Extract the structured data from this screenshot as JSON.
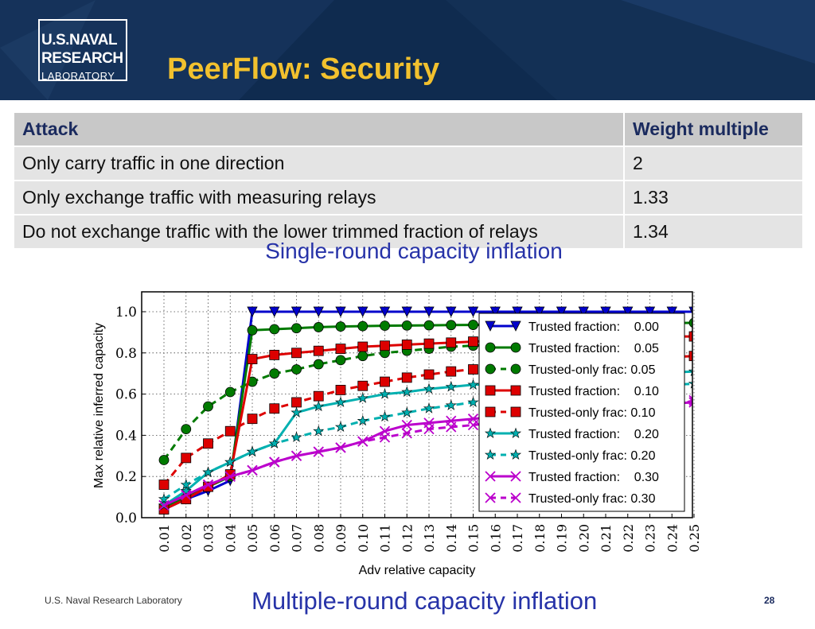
{
  "header": {
    "logo_line1": "U.S.NAVAL",
    "logo_line2": "RESEARCH",
    "logo_line3": "LABORATORY",
    "title": "PeerFlow: Security"
  },
  "table": {
    "headers": [
      "Attack",
      "Weight multiple"
    ],
    "rows": [
      [
        "Only carry traffic in one direction",
        "2"
      ],
      [
        "Only exchange traffic with measuring relays",
        "1.33"
      ],
      [
        "Do not exchange traffic with the lower trimmed fraction of relays",
        "1.34"
      ]
    ]
  },
  "caption_top": "Single-round capacity inflation",
  "caption_bottom": "Multiple-round capacity inflation",
  "footer": {
    "org": "U.S. Naval Research Laboratory",
    "page": "28"
  },
  "colors": {
    "banner": "#0f2b4f",
    "title": "#f2c12e",
    "caption": "#2733a8"
  },
  "chart_data": {
    "type": "line",
    "xlabel": "Adv relative capacity",
    "ylabel": "Max relative inferred capacity",
    "categories": [
      "0.01",
      "0.02",
      "0.03",
      "0.04",
      "0.05",
      "0.06",
      "0.07",
      "0.08",
      "0.09",
      "0.10",
      "0.11",
      "0.12",
      "0.13",
      "0.14",
      "0.15",
      "0.16",
      "0.17",
      "0.18",
      "0.19",
      "0.20",
      "0.21",
      "0.22",
      "0.23",
      "0.24",
      "0.25"
    ],
    "yticks": [
      "0.0",
      "0.2",
      "0.4",
      "0.6",
      "0.8",
      "1.0"
    ],
    "ylim": [
      0,
      1.0
    ],
    "grid": true,
    "legend": "top-right",
    "series": [
      {
        "name": "Trusted fraction:    0.00",
        "color": "#0000cc",
        "dash": "solid",
        "marker": "triangle-down",
        "values": [
          0.04,
          0.09,
          0.13,
          0.18,
          1.0,
          1.0,
          1.0,
          1.0,
          1.0,
          1.0,
          1.0,
          1.0,
          1.0,
          1.0,
          1.0,
          1.0,
          1.0,
          1.0,
          1.0,
          1.0,
          1.0,
          1.0,
          1.0,
          1.0,
          1.0
        ]
      },
      {
        "name": "Trusted fraction:    0.05",
        "color": "#007a00",
        "dash": "solid",
        "marker": "circle",
        "values": [
          0.05,
          0.1,
          0.15,
          0.2,
          0.91,
          0.915,
          0.92,
          0.925,
          0.928,
          0.93,
          0.932,
          0.933,
          0.934,
          0.935,
          0.936,
          0.937,
          0.938,
          0.939,
          0.94,
          0.941,
          0.942,
          0.943,
          0.944,
          0.945,
          0.946
        ]
      },
      {
        "name": "Trusted-only frac: 0.05",
        "color": "#007a00",
        "dash": "dashed",
        "marker": "circle",
        "values": [
          0.28,
          0.43,
          0.54,
          0.61,
          0.66,
          0.7,
          0.72,
          0.745,
          0.765,
          0.785,
          0.8,
          0.81,
          0.82,
          0.83,
          0.835,
          0.84,
          0.845,
          0.85,
          0.855,
          0.86,
          0.865,
          0.87,
          0.875,
          0.88,
          0.885
        ]
      },
      {
        "name": "Trusted fraction:    0.10",
        "color": "#dd0000",
        "dash": "solid",
        "marker": "square",
        "values": [
          0.04,
          0.09,
          0.15,
          0.21,
          0.77,
          0.79,
          0.8,
          0.81,
          0.82,
          0.83,
          0.835,
          0.84,
          0.845,
          0.85,
          0.855,
          0.86,
          0.865,
          0.87,
          0.872,
          0.875,
          0.877,
          0.878,
          0.879,
          0.88,
          0.88
        ]
      },
      {
        "name": "Trusted-only frac: 0.10",
        "color": "#dd0000",
        "dash": "dashed",
        "marker": "square",
        "values": [
          0.16,
          0.29,
          0.36,
          0.42,
          0.48,
          0.53,
          0.56,
          0.59,
          0.62,
          0.64,
          0.66,
          0.68,
          0.695,
          0.71,
          0.72,
          0.73,
          0.74,
          0.75,
          0.755,
          0.76,
          0.765,
          0.77,
          0.775,
          0.78,
          0.785
        ]
      },
      {
        "name": "Trusted fraction:    0.20",
        "color": "#00b0b0",
        "dash": "solid",
        "marker": "star",
        "values": [
          0.06,
          0.13,
          0.22,
          0.27,
          0.32,
          0.36,
          0.51,
          0.54,
          0.56,
          0.58,
          0.6,
          0.61,
          0.625,
          0.635,
          0.645,
          0.65,
          0.66,
          0.665,
          0.67,
          0.68,
          0.685,
          0.69,
          0.7,
          0.705,
          0.71
        ]
      },
      {
        "name": "Trusted-only frac: 0.20",
        "color": "#00b0b0",
        "dash": "dashed",
        "marker": "star",
        "values": [
          0.09,
          0.16,
          0.22,
          0.27,
          0.32,
          0.36,
          0.39,
          0.42,
          0.44,
          0.47,
          0.49,
          0.51,
          0.53,
          0.545,
          0.56,
          0.575,
          0.585,
          0.595,
          0.605,
          0.615,
          0.625,
          0.635,
          0.64,
          0.645,
          0.65
        ]
      },
      {
        "name": "Trusted fraction:    0.30",
        "color": "#bb00cc",
        "dash": "solid",
        "marker": "x",
        "values": [
          0.06,
          0.11,
          0.16,
          0.2,
          0.23,
          0.27,
          0.3,
          0.32,
          0.34,
          0.37,
          0.42,
          0.45,
          0.46,
          0.47,
          0.48,
          0.49,
          0.5,
          0.51,
          0.52,
          0.525,
          0.53,
          0.54,
          0.55,
          0.555,
          0.56
        ]
      },
      {
        "name": "Trusted-only frac: 0.30",
        "color": "#bb00cc",
        "dash": "dashed",
        "marker": "x",
        "values": [
          0.06,
          0.11,
          0.16,
          0.2,
          0.23,
          0.27,
          0.3,
          0.32,
          0.34,
          0.37,
          0.39,
          0.41,
          0.43,
          0.44,
          0.45,
          0.46,
          0.47,
          0.48,
          0.49,
          0.5,
          0.51,
          0.52,
          0.53,
          0.54,
          0.57
        ]
      }
    ]
  }
}
